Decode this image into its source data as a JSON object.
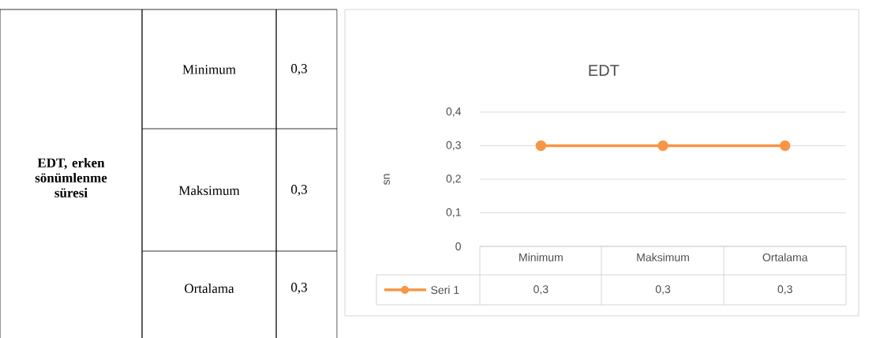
{
  "chart_data": [
    {
      "type": "other",
      "annotations": [
        "EDT, erken sönümlenme süresi",
        "Minimum",
        "0,3",
        "Maksimum",
        "0,3",
        "Ortalama",
        "0,3"
      ]
    },
    {
      "type": "line",
      "title": "EDT",
      "ylabel": "sn",
      "categories": [
        "Minimum",
        "Maksimum",
        "Ortalama"
      ],
      "series": [
        {
          "name": "Seri 1",
          "color": "#f79646",
          "values": [
            0.3,
            0.3,
            0.3
          ],
          "value_labels": [
            "0,3",
            "0,3",
            "0,3"
          ]
        }
      ],
      "ylim": [
        0,
        0.4
      ],
      "yticks": [
        0,
        {
          "value": 0.1,
          "label": "0,1"
        },
        {
          "value": 0.2,
          "label": "0,2"
        },
        {
          "value": 0.3,
          "label": "0,3"
        },
        {
          "value": 0.4,
          "label": "0,4"
        }
      ],
      "grid": "y",
      "legend": "bottom",
      "marker": "circle",
      "line_style": "solid"
    }
  ]
}
